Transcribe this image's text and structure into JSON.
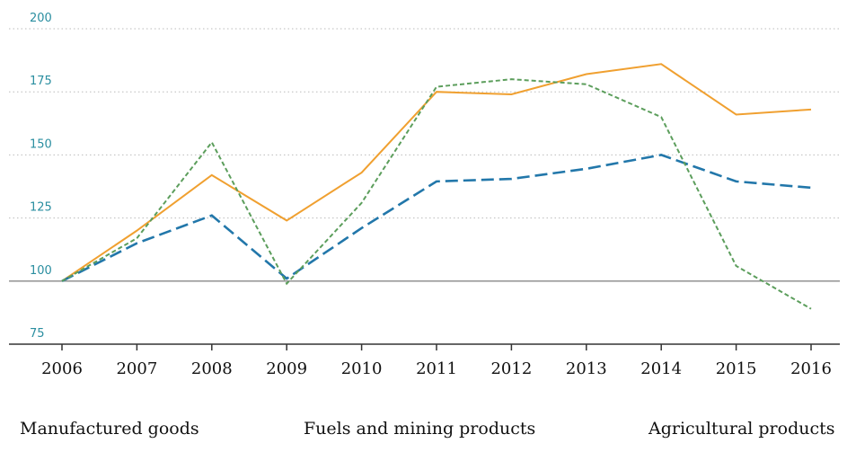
{
  "chart_data": {
    "type": "line",
    "x": [
      2006,
      2007,
      2008,
      2009,
      2010,
      2011,
      2012,
      2013,
      2014,
      2015,
      2016
    ],
    "xticks": [
      2006,
      2007,
      2008,
      2009,
      2010,
      2011,
      2012,
      2013,
      2014,
      2015,
      2016
    ],
    "xlim": [
      2006,
      2016
    ],
    "ylim": [
      75,
      200
    ],
    "yticks": [
      75,
      100,
      125,
      150,
      175,
      200
    ],
    "grid": true,
    "series": [
      {
        "name": "Manufactured goods",
        "color": "#2277aa",
        "dash": "dashed",
        "values": [
          100,
          115,
          126,
          101,
          121,
          139.5,
          140.5,
          144.5,
          150,
          139.5,
          137
        ]
      },
      {
        "name": "Fuels and mining products",
        "color": "#5c9e5c",
        "dash": "dotted",
        "values": [
          100,
          117,
          155,
          99,
          131,
          177,
          180,
          178,
          165,
          106,
          89
        ]
      },
      {
        "name": "Agricultural products",
        "color": "#f0a030",
        "dash": "solid",
        "values": [
          100,
          120,
          142,
          124,
          143,
          175,
          174,
          182,
          186,
          166,
          168
        ]
      }
    ]
  }
}
